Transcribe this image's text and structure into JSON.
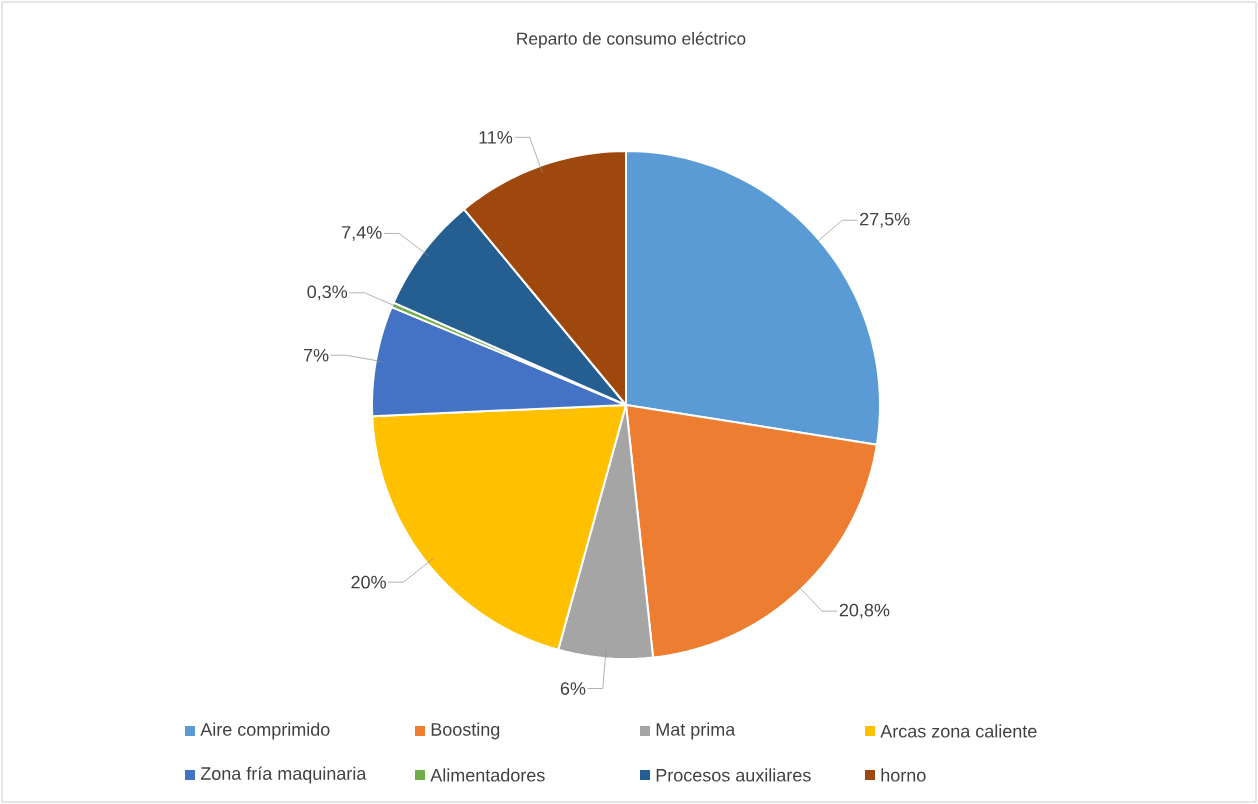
{
  "chart_data": {
    "type": "pie",
    "title": "Reparto de consumo eléctrico",
    "categories": [
      "Aire comprimido",
      "Boosting",
      "Mat prima",
      "Arcas zona caliente",
      "Zona fría maquinaria",
      "Alimentadores",
      "Procesos auxiliares",
      "horno"
    ],
    "values": [
      27.5,
      20.8,
      6,
      20,
      7,
      0.3,
      7.4,
      11
    ],
    "colors": [
      "#5b9bd5",
      "#ed7d31",
      "#a5a5a5",
      "#ffc000",
      "#4472c4",
      "#70ad47",
      "#255e91",
      "#9e480e"
    ],
    "value_labels": [
      "27,5%",
      "20,8%",
      "6%",
      "20%",
      "7%",
      "0,3%",
      "7,4%",
      "11%"
    ],
    "legend": "bottom"
  }
}
